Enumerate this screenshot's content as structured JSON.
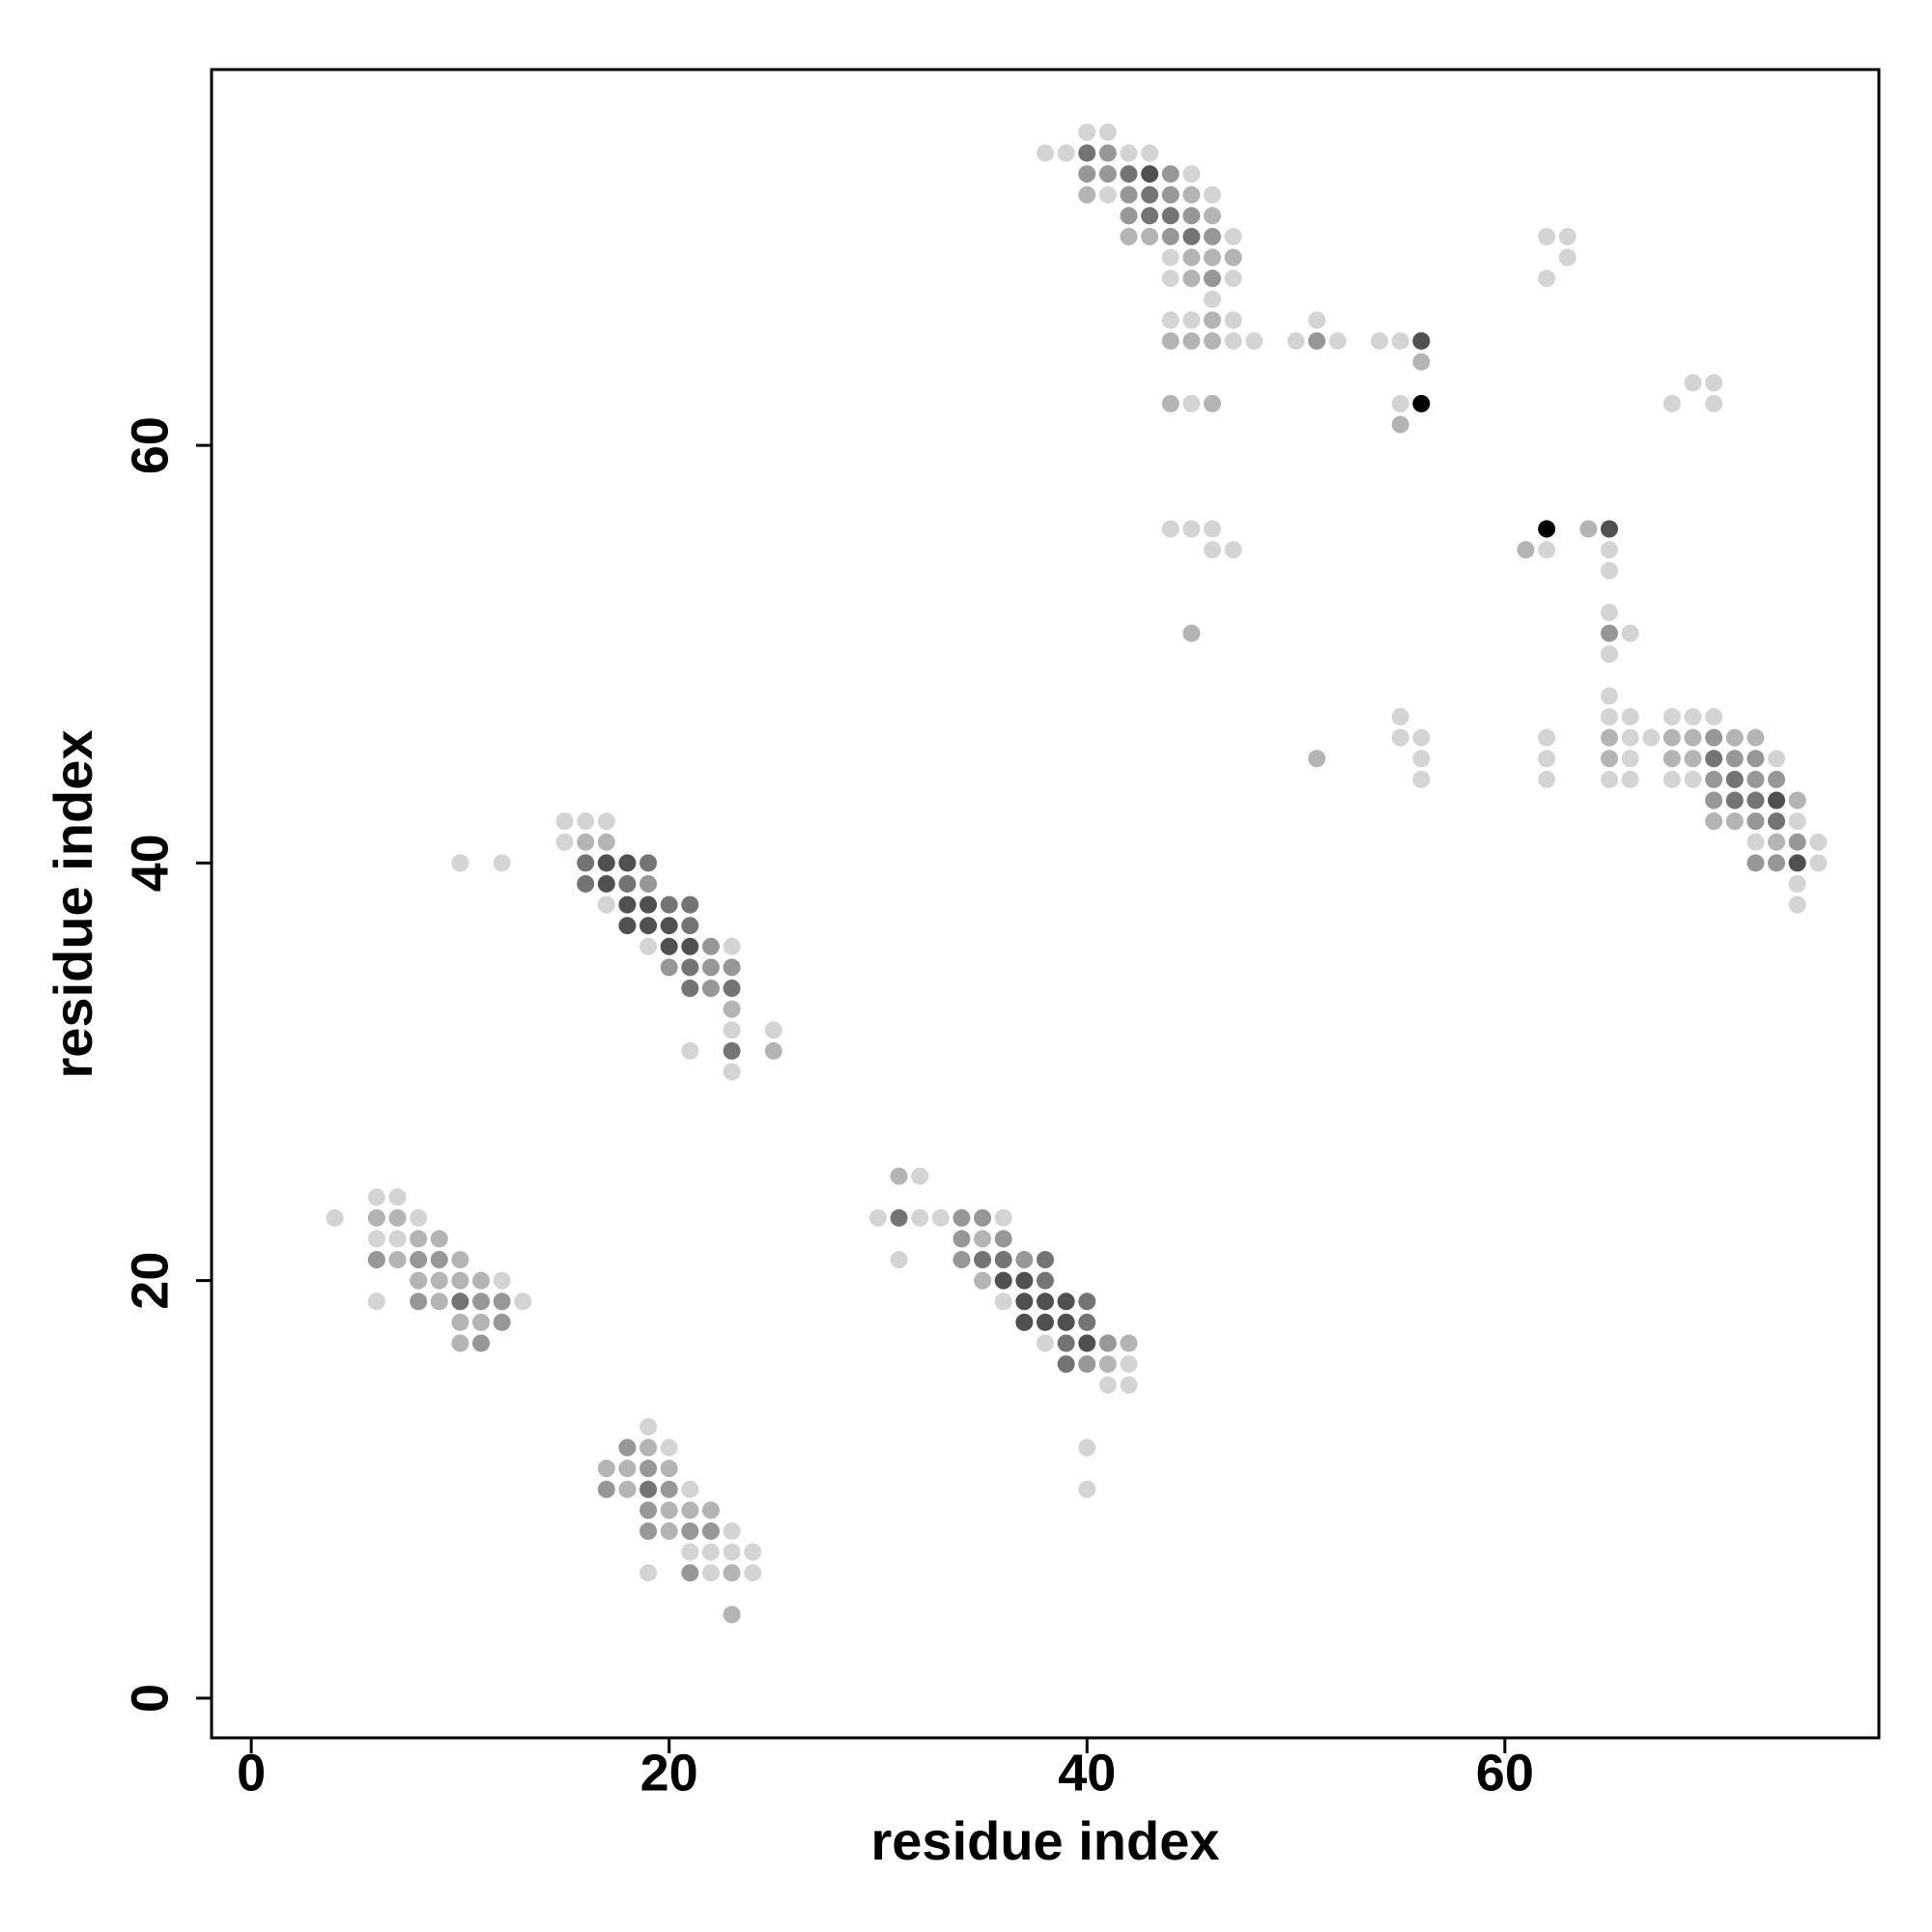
{
  "chart_data": {
    "type": "scatter",
    "x_label": "residue index",
    "y_label": "residue index",
    "xlim": [
      -1.9,
      77.9
    ],
    "ylim": [
      -1.9,
      78.0
    ],
    "xticks": [
      0,
      20,
      40,
      60
    ],
    "yticks": [
      0,
      20,
      40,
      60
    ],
    "series": [
      {
        "color": "#d4d4d4",
        "x": [
          6,
          7,
          4,
          8,
          6,
          7,
          12,
          6,
          13,
          19,
          20,
          21,
          23,
          21,
          22,
          23,
          24,
          19,
          22,
          24,
          32,
          30,
          32,
          33,
          36,
          31,
          36,
          38,
          42,
          41,
          42,
          40,
          40,
          15,
          16,
          17,
          15,
          10,
          12,
          17,
          19,
          23,
          23,
          25,
          21,
          23,
          40,
          41,
          38,
          39,
          42,
          43,
          45,
          41,
          46,
          47,
          44,
          44,
          47,
          46,
          44,
          45,
          47,
          51,
          47,
          48,
          50,
          52,
          54,
          55,
          45,
          55,
          68,
          70,
          69,
          70,
          62,
          63,
          63,
          62,
          44,
          45,
          46,
          46,
          47,
          62,
          65,
          65,
          65,
          66,
          65,
          65,
          55,
          65,
          66,
          68,
          69,
          70,
          55,
          56,
          62,
          66,
          67,
          66,
          56,
          62,
          73,
          56,
          62,
          65,
          66,
          68,
          69,
          74,
          72,
          75,
          75,
          74,
          74
        ],
        "y": [
          24,
          24,
          23,
          23,
          22,
          22,
          20,
          19,
          19,
          13,
          12,
          10,
          8,
          7,
          7,
          7,
          7,
          6,
          6,
          6,
          25,
          23,
          23,
          23,
          23,
          21,
          19,
          17,
          16,
          15,
          15,
          12,
          10,
          42,
          42,
          42,
          41,
          40,
          40,
          38,
          36,
          36,
          32,
          32,
          31,
          30,
          75,
          75,
          74,
          74,
          74,
          74,
          73,
          72,
          72,
          70,
          69,
          68,
          68,
          67,
          66,
          66,
          66,
          66,
          65,
          65,
          65,
          65,
          65,
          65,
          62,
          62,
          62,
          62,
          63,
          63,
          70,
          70,
          69,
          68,
          56,
          56,
          56,
          55,
          55,
          55,
          55,
          54,
          52,
          51,
          50,
          48,
          47,
          47,
          47,
          47,
          47,
          47,
          46,
          46,
          46,
          46,
          46,
          45,
          45,
          45,
          45,
          44,
          44,
          44,
          44,
          44,
          44,
          42,
          41,
          41,
          40,
          39,
          38
        ]
      },
      {
        "color": "#b4b4b4",
        "x": [
          6,
          7,
          8,
          9,
          7,
          10,
          8,
          9,
          10,
          11,
          9,
          10,
          11,
          10,
          19,
          17,
          18,
          20,
          18,
          20,
          21,
          22,
          20,
          23,
          23,
          31,
          35,
          35,
          42,
          41,
          16,
          17,
          23,
          25,
          40,
          45,
          46,
          42,
          43,
          45,
          46,
          47,
          45,
          46,
          44,
          45,
          46,
          56,
          44,
          46,
          55,
          64,
          61,
          45,
          65,
          68,
          69,
          71,
          72,
          51,
          65,
          68,
          69,
          74,
          70,
          71,
          73
        ],
        "y": [
          23,
          23,
          22,
          22,
          21,
          21,
          20,
          20,
          20,
          20,
          19,
          18,
          18,
          17,
          12,
          11,
          11,
          11,
          10,
          9,
          9,
          9,
          8,
          6,
          4,
          25,
          22,
          20,
          17,
          16,
          41,
          41,
          33,
          31,
          72,
          72,
          71,
          70,
          70,
          69,
          69,
          69,
          68,
          66,
          65,
          65,
          65,
          64,
          62,
          62,
          61,
          56,
          55,
          51,
          46,
          46,
          46,
          46,
          46,
          45,
          45,
          45,
          45,
          43,
          42,
          42,
          41
        ]
      },
      {
        "color": "#979797",
        "x": [
          8,
          6,
          9,
          8,
          11,
          12,
          12,
          11,
          18,
          19,
          17,
          20,
          19,
          19,
          21,
          22,
          21,
          34,
          35,
          34,
          36,
          34,
          37,
          41,
          40,
          19,
          22,
          20,
          22,
          23,
          22,
          41,
          40,
          41,
          44,
          42,
          44,
          42,
          45,
          44,
          46,
          46,
          51,
          65,
          70,
          71,
          72,
          70,
          72,
          73,
          70,
          72,
          74,
          72,
          73
        ],
        "y": [
          21,
          21,
          21,
          19,
          19,
          19,
          18,
          17,
          12,
          11,
          10,
          10,
          9,
          8,
          8,
          8,
          6,
          23,
          23,
          22,
          22,
          21,
          21,
          17,
          16,
          39,
          36,
          35,
          35,
          35,
          34,
          74,
          73,
          73,
          73,
          72,
          72,
          71,
          71,
          70,
          70,
          68,
          65,
          51,
          46,
          45,
          45,
          44,
          44,
          44,
          43,
          42,
          41,
          40,
          40
        ]
      },
      {
        "color": "#747474",
        "x": [
          10,
          19,
          31,
          35,
          36,
          38,
          38,
          40,
          40,
          39,
          39,
          16,
          19,
          16,
          18,
          20,
          21,
          21,
          21,
          21,
          23,
          23,
          40,
          42,
          43,
          43,
          44,
          45,
          70,
          71,
          71,
          72,
          73
        ],
        "y": [
          19,
          10,
          23,
          21,
          21,
          21,
          20,
          19,
          18,
          17,
          16,
          40,
          40,
          39,
          39,
          38,
          38,
          37,
          35,
          34,
          34,
          31,
          74,
          73,
          72,
          71,
          71,
          70,
          45,
          44,
          43,
          43,
          42
        ]
      },
      {
        "color": "#505050",
        "x": [
          36,
          37,
          37,
          38,
          39,
          37,
          38,
          39,
          40,
          17,
          18,
          17,
          18,
          19,
          18,
          19,
          20,
          20,
          21,
          43,
          56,
          65,
          73,
          74
        ],
        "y": [
          20,
          20,
          19,
          19,
          19,
          18,
          18,
          18,
          17,
          40,
          40,
          39,
          38,
          38,
          37,
          37,
          37,
          36,
          36,
          73,
          65,
          56,
          43,
          40
        ]
      },
      {
        "color": "#000000",
        "x": [
          56,
          62
        ],
        "y": [
          62,
          56
        ]
      }
    ]
  }
}
